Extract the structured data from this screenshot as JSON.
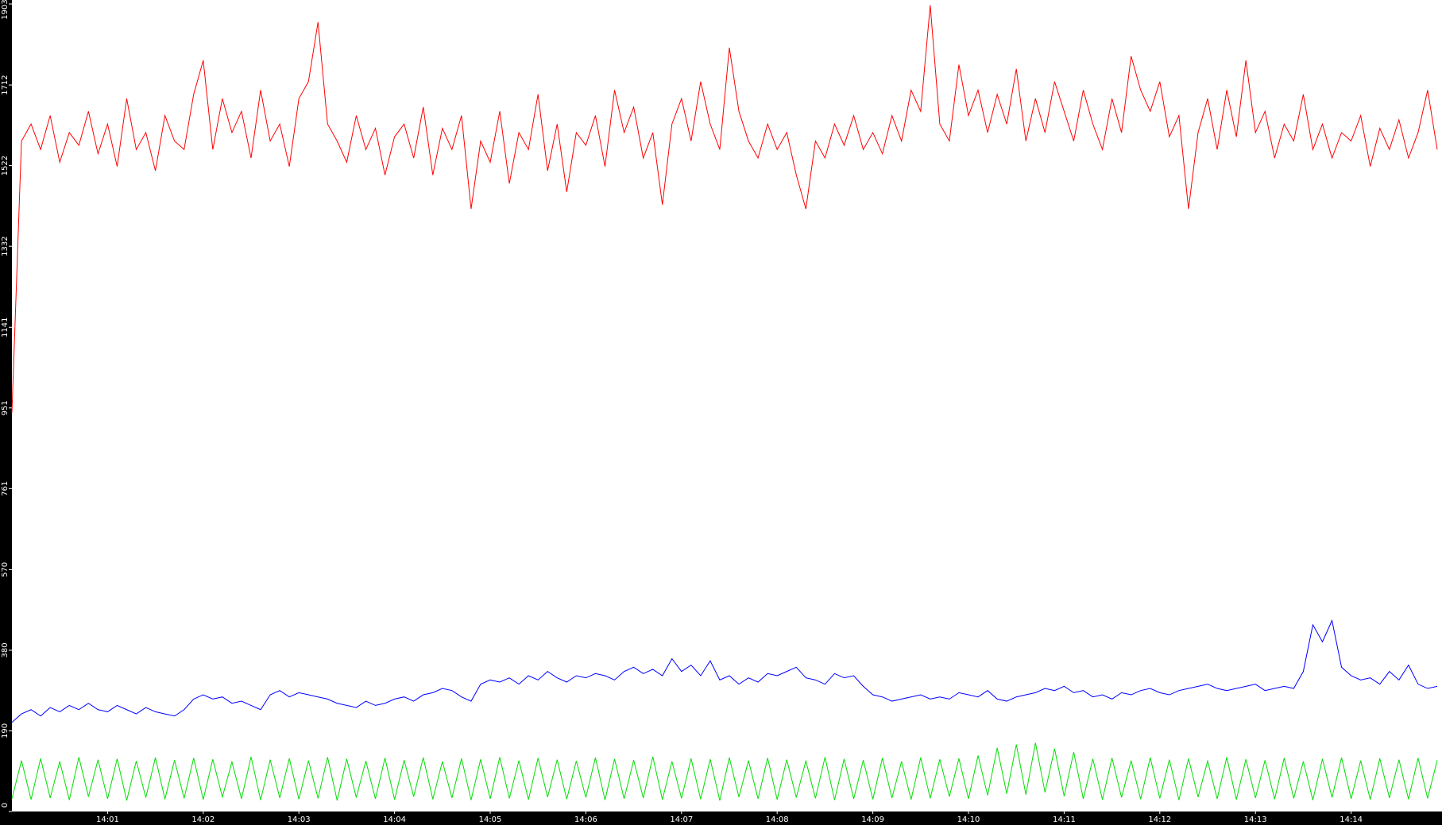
{
  "chart_data": {
    "type": "line",
    "x": [
      0,
      0.1,
      0.2,
      0.3,
      0.4,
      0.5,
      0.6,
      0.7,
      0.8,
      0.9,
      1,
      1.1,
      1.2,
      1.3,
      1.4,
      1.5,
      1.6,
      1.7,
      1.8,
      1.9,
      2,
      2.1,
      2.2,
      2.3,
      2.4,
      2.5,
      2.6,
      2.7,
      2.8,
      2.9,
      3,
      3.1,
      3.2,
      3.3,
      3.4,
      3.5,
      3.6,
      3.7,
      3.8,
      3.9,
      4,
      4.1,
      4.2,
      4.3,
      4.4,
      4.5,
      4.6,
      4.7,
      4.8,
      4.9,
      5,
      5.1,
      5.2,
      5.3,
      5.4,
      5.5,
      5.6,
      5.7,
      5.8,
      5.9,
      6,
      6.1,
      6.2,
      6.3,
      6.4,
      6.5,
      6.6,
      6.7,
      6.8,
      6.9,
      7,
      7.1,
      7.2,
      7.3,
      7.4,
      7.5,
      7.6,
      7.7,
      7.8,
      7.9,
      8,
      8.1,
      8.2,
      8.3,
      8.4,
      8.5,
      8.6,
      8.7,
      8.8,
      8.9,
      9,
      9.1,
      9.2,
      9.3,
      9.4,
      9.5,
      9.6,
      9.7,
      9.8,
      9.9,
      10,
      10.1,
      10.2,
      10.3,
      10.4,
      10.5,
      10.6,
      10.7,
      10.8,
      10.9,
      11,
      11.1,
      11.2,
      11.3,
      11.4,
      11.5,
      11.6,
      11.7,
      11.8,
      11.9,
      12,
      12.1,
      12.2,
      12.3,
      12.4,
      12.5,
      12.6,
      12.7,
      12.8,
      12.9,
      13,
      13.1,
      13.2,
      13.3,
      13.4,
      13.5,
      13.6,
      13.7,
      13.8,
      13.9,
      14,
      14.1,
      14.2,
      14.3,
      14.4,
      14.5,
      14.6,
      14.7,
      14.8,
      14.9
    ],
    "series": [
      {
        "color": "#ff0000",
        "values": [
          940,
          1580,
          1620,
          1560,
          1640,
          1530,
          1600,
          1570,
          1650,
          1550,
          1620,
          1520,
          1680,
          1560,
          1600,
          1510,
          1640,
          1580,
          1560,
          1690,
          1770,
          1560,
          1680,
          1600,
          1650,
          1540,
          1700,
          1580,
          1620,
          1520,
          1680,
          1720,
          1860,
          1620,
          1580,
          1530,
          1640,
          1560,
          1610,
          1500,
          1590,
          1620,
          1540,
          1660,
          1500,
          1610,
          1560,
          1640,
          1420,
          1580,
          1530,
          1650,
          1480,
          1600,
          1560,
          1690,
          1510,
          1620,
          1460,
          1600,
          1570,
          1640,
          1520,
          1700,
          1600,
          1660,
          1540,
          1600,
          1430,
          1620,
          1680,
          1580,
          1720,
          1620,
          1560,
          1800,
          1650,
          1580,
          1540,
          1620,
          1560,
          1600,
          1500,
          1420,
          1580,
          1540,
          1620,
          1570,
          1640,
          1560,
          1600,
          1550,
          1640,
          1580,
          1700,
          1650,
          1900,
          1620,
          1580,
          1760,
          1640,
          1700,
          1600,
          1690,
          1620,
          1750,
          1580,
          1680,
          1600,
          1720,
          1650,
          1580,
          1700,
          1620,
          1560,
          1680,
          1600,
          1780,
          1700,
          1650,
          1720,
          1590,
          1640,
          1420,
          1600,
          1680,
          1560,
          1700,
          1590,
          1770,
          1600,
          1650,
          1540,
          1620,
          1580,
          1690,
          1560,
          1620,
          1540,
          1600,
          1580,
          1640,
          1520,
          1610,
          1560,
          1630,
          1540,
          1600,
          1700,
          1560
        ]
      },
      {
        "color": "#0000ff",
        "values": [
          210,
          230,
          240,
          225,
          245,
          235,
          250,
          240,
          255,
          240,
          235,
          250,
          240,
          230,
          245,
          235,
          230,
          225,
          240,
          265,
          275,
          265,
          270,
          255,
          260,
          250,
          240,
          275,
          285,
          270,
          280,
          275,
          270,
          265,
          255,
          250,
          245,
          260,
          250,
          255,
          265,
          270,
          260,
          275,
          280,
          290,
          285,
          270,
          260,
          300,
          310,
          305,
          315,
          300,
          320,
          310,
          330,
          315,
          305,
          320,
          315,
          325,
          320,
          310,
          330,
          340,
          325,
          335,
          320,
          360,
          330,
          345,
          320,
          355,
          310,
          320,
          300,
          315,
          305,
          325,
          320,
          330,
          340,
          315,
          310,
          300,
          325,
          315,
          320,
          295,
          275,
          270,
          260,
          265,
          270,
          275,
          265,
          270,
          265,
          280,
          275,
          270,
          285,
          265,
          260,
          270,
          275,
          280,
          290,
          285,
          295,
          280,
          285,
          270,
          275,
          265,
          280,
          275,
          285,
          290,
          280,
          275,
          285,
          290,
          295,
          300,
          290,
          285,
          290,
          295,
          300,
          285,
          290,
          295,
          290,
          330,
          440,
          400,
          450,
          340,
          320,
          310,
          315,
          300,
          330,
          310,
          345,
          300,
          290,
          295
        ]
      },
      {
        "color": "#00dd00",
        "values": [
          30,
          120,
          28,
          125,
          32,
          118,
          27,
          128,
          35,
          122,
          30,
          124,
          26,
          119,
          33,
          127,
          29,
          121,
          31,
          126,
          28,
          123,
          34,
          117,
          30,
          129,
          27,
          122,
          32,
          125,
          29,
          120,
          31,
          128,
          26,
          124,
          33,
          119,
          30,
          126,
          28,
          121,
          35,
          127,
          29,
          118,
          32,
          125,
          27,
          123,
          30,
          128,
          31,
          120,
          28,
          126,
          34,
          122,
          29,
          119,
          33,
          127,
          27,
          124,
          30,
          121,
          32,
          129,
          28,
          118,
          31,
          125,
          29,
          123,
          26,
          127,
          34,
          120,
          30,
          126,
          28,
          122,
          33,
          119,
          31,
          128,
          27,
          124,
          30,
          121,
          29,
          126,
          32,
          118,
          28,
          127,
          31,
          123,
          35,
          125,
          30,
          132,
          38,
          150,
          42,
          158,
          40,
          162,
          45,
          148,
          36,
          140,
          30,
          124,
          28,
          126,
          33,
          120,
          29,
          127,
          31,
          122,
          27,
          125,
          34,
          119,
          30,
          128,
          28,
          123,
          32,
          121,
          29,
          126,
          31,
          118,
          27,
          124,
          33,
          127,
          30,
          120,
          28,
          125,
          32,
          122,
          29,
          126,
          31,
          121
        ]
      }
    ],
    "xlim": [
      0,
      14.95
    ],
    "ylim": [
      0,
      1903
    ],
    "xticks": [
      {
        "value": 1,
        "label": "14:01"
      },
      {
        "value": 2,
        "label": "14:02"
      },
      {
        "value": 3,
        "label": "14:03"
      },
      {
        "value": 4,
        "label": "14:04"
      },
      {
        "value": 5,
        "label": "14:05"
      },
      {
        "value": 6,
        "label": "14:06"
      },
      {
        "value": 7,
        "label": "14:07"
      },
      {
        "value": 8,
        "label": "14:08"
      },
      {
        "value": 9,
        "label": "14:09"
      },
      {
        "value": 10,
        "label": "14:10"
      },
      {
        "value": 11,
        "label": "14:11"
      },
      {
        "value": 12,
        "label": "14:12"
      },
      {
        "value": 13,
        "label": "14:13"
      },
      {
        "value": 14,
        "label": "14:14"
      }
    ],
    "yticks": [
      0,
      190,
      380,
      570,
      761,
      951,
      1141,
      1332,
      1522,
      1712,
      1903
    ]
  }
}
